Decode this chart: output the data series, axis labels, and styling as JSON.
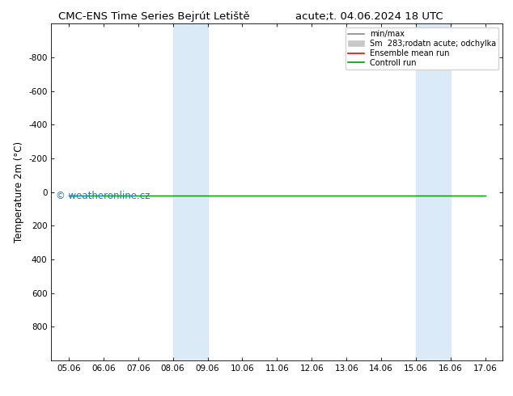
{
  "title_left": "CMC-ENS Time Series Bejrút Letiště",
  "title_right": "acute;t. 04.06.2024 18 UTC",
  "ylabel": "Temperature 2m (°C)",
  "ylim_bottom": -1000,
  "ylim_top": 1000,
  "yticks": [
    -800,
    -600,
    -400,
    -200,
    0,
    200,
    400,
    600,
    800
  ],
  "xtick_labels": [
    "05.06",
    "06.06",
    "07.06",
    "08.06",
    "09.06",
    "10.06",
    "11.06",
    "12.06",
    "13.06",
    "14.06",
    "15.06",
    "16.06",
    "17.06"
  ],
  "xtick_values": [
    0,
    1,
    2,
    3,
    4,
    5,
    6,
    7,
    8,
    9,
    10,
    11,
    12
  ],
  "xlim": [
    -0.5,
    12.5
  ],
  "shade_bands": [
    [
      3.0,
      3.5
    ],
    [
      3.5,
      4.0
    ],
    [
      10.0,
      10.5
    ],
    [
      10.5,
      11.0
    ]
  ],
  "shade_color": "#daeaf7",
  "control_run_y": 20,
  "control_run_color": "#009900",
  "ensemble_mean_color": "#ff0000",
  "minmax_color": "#888888",
  "spread_color": "#c8c8c8",
  "watermark": "© weatheronline.cz",
  "watermark_color": "#1a7abf",
  "background_color": "#ffffff",
  "legend_labels": [
    "min/max",
    "Sm  283;rodatn acute; odchylka",
    "Ensemble mean run",
    "Controll run"
  ],
  "legend_colors": [
    "#888888",
    "#c8c8c8",
    "#ff0000",
    "#009900"
  ],
  "tick_fontsize": 7.5,
  "ylabel_fontsize": 8.5,
  "title_fontsize": 9.5
}
